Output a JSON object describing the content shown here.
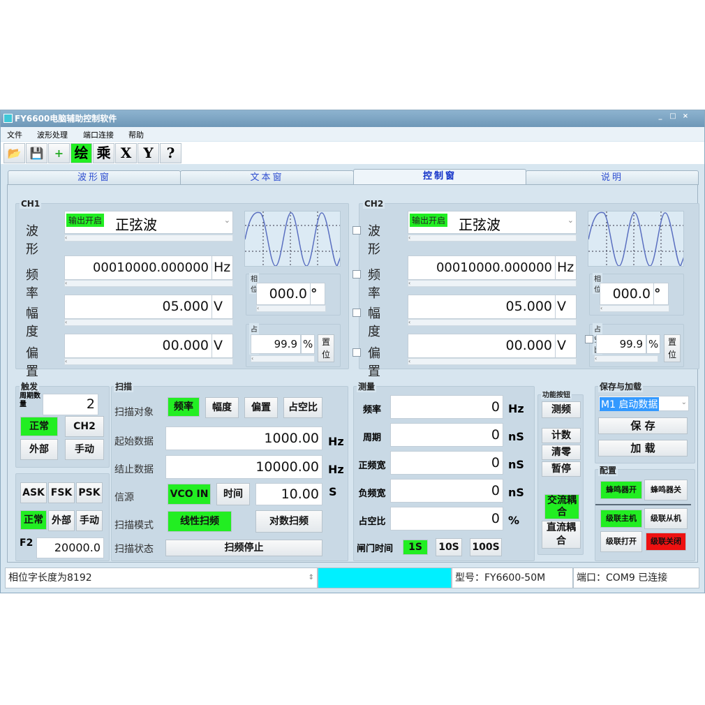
{
  "window": {
    "title": "FY6600电脑辅助控制软件",
    "controls": [
      "_",
      "□",
      "×"
    ]
  },
  "menu": [
    "文件",
    "波形处理",
    "端口连接",
    "帮助"
  ],
  "toolbar": [
    {
      "icon": "open-folder-icon",
      "label": "📂"
    },
    {
      "icon": "save-icon",
      "label": "💾"
    },
    {
      "icon": "add-icon",
      "label": "+"
    },
    {
      "icon": "draw-icon",
      "label": "绘",
      "active": true
    },
    {
      "icon": "multiply-icon",
      "label": "乘"
    },
    {
      "icon": "x-icon",
      "label": "X"
    },
    {
      "icon": "y-icon",
      "label": "Y"
    },
    {
      "icon": "help-icon",
      "label": "?"
    }
  ],
  "tabs": [
    "波形窗",
    "文本窗",
    "控制窗",
    "说明"
  ],
  "active_tab": "控制窗",
  "ch1": {
    "title": "CH1",
    "wave_label": "波形",
    "output_btn": "输出开启",
    "waveform": "正弦波",
    "freq_label": "频率",
    "freq": "00010000.000000",
    "freq_unit": "Hz",
    "amp_label": "幅度",
    "amp": "05.000",
    "amp_unit": "V",
    "offset_label": "偏置",
    "offset": "00.000",
    "offset_unit": "V",
    "phase_label": "相位",
    "phase": "000.0",
    "phase_unit": "°",
    "duty_label": "占空比",
    "duty": "99.9",
    "duty_unit": "%",
    "reset_btn": "置位"
  },
  "ch2": {
    "title": "CH2",
    "wave_label": "波形",
    "output_btn": "输出开启",
    "waveform": "正弦波",
    "freq_label": "频率",
    "freq": "00010000.000000",
    "freq_unit": "Hz",
    "amp_label": "幅度",
    "amp": "05.000",
    "amp_unit": "V",
    "offset_label": "偏置",
    "offset": "00.000",
    "offset_unit": "V",
    "phase_label": "相位",
    "phase": "000.0",
    "phase_unit": "°",
    "duty_label": "占空比",
    "duty": "99.9",
    "duty_unit": "%",
    "reset_btn": "置位"
  },
  "trigger": {
    "title": "触发",
    "count_label": "周期数量",
    "count": "2",
    "normal": "正常",
    "ch2": "CH2",
    "external": "外部",
    "manual": "手动"
  },
  "mod": {
    "ask": "ASK",
    "fsk": "FSK",
    "psk": "PSK",
    "normal": "正常",
    "external": "外部",
    "manual": "手动",
    "f2_label": "F2",
    "f2": "20000.0"
  },
  "sweep": {
    "title": "扫描",
    "object_label": "扫描对象",
    "objects": [
      "频率",
      "幅度",
      "偏置",
      "占空比"
    ],
    "active_object": "频率",
    "start_label": "起始数据",
    "start": "1000.00",
    "start_unit": "Hz",
    "end_label": "结止数据",
    "end": "10000.00",
    "end_unit": "Hz",
    "source_label": "信源",
    "vco": "VCO IN",
    "time_btn": "时间",
    "time": "10.00",
    "time_unit": "S",
    "mode_label": "扫描模式",
    "linear": "线性扫频",
    "log": "对数扫频",
    "state_label": "扫描状态",
    "state_btn": "扫频停止"
  },
  "measure": {
    "title": "测量",
    "rows": [
      {
        "label": "频率",
        "value": "0",
        "unit": "Hz"
      },
      {
        "label": "周期",
        "value": "0",
        "unit": "nS"
      },
      {
        "label": "正频宽",
        "value": "0",
        "unit": "nS"
      },
      {
        "label": "负频宽",
        "value": "0",
        "unit": "nS"
      },
      {
        "label": "占空比",
        "value": "0",
        "unit": "%"
      }
    ],
    "gate_label": "闸门时间",
    "gates": [
      "1S",
      "10S",
      "100S"
    ],
    "active_gate": "1S"
  },
  "func": {
    "title": "功能按钮",
    "measure_freq": "测频",
    "count": "计数",
    "clear": "清零",
    "pause": "暂停",
    "ac": "交流耦合",
    "dc": "直流耦合"
  },
  "save": {
    "title": "保存与加载",
    "slot": "M1 启动数据",
    "save_btn": "保 存",
    "load_btn": "加 载"
  },
  "config": {
    "title": "配置",
    "buzzer_on": "蜂鸣器开",
    "buzzer_off": "蜂鸣器关",
    "master": "级联主机",
    "slave": "级联从机",
    "cascade_open": "级联打开",
    "cascade_close": "级联关闭"
  },
  "status": {
    "message": "相位字长度为8192",
    "model": "型号：FY6600-50M",
    "port": "端口：COM9 已连接"
  },
  "colors": {
    "active": "#22ee22",
    "danger": "#ee1111",
    "progress": "#00f0ff",
    "wave": "#5a6fc0"
  }
}
